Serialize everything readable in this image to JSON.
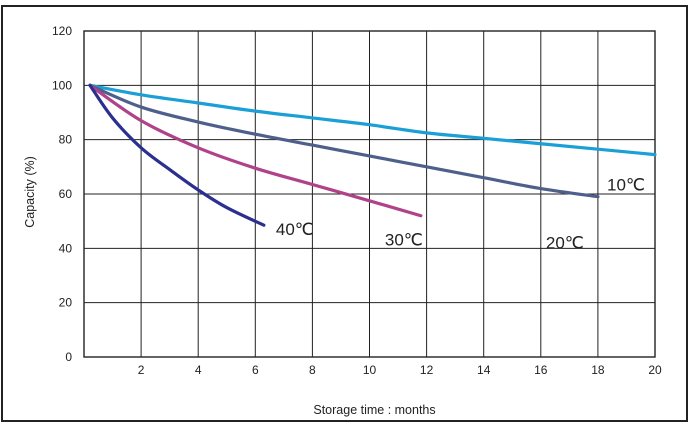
{
  "chart_data": {
    "type": "line",
    "xlabel": "Storage time : months",
    "ylabel": "Capacity (%)",
    "xlim": [
      0,
      20
    ],
    "ylim": [
      0,
      120
    ],
    "x_ticks": [
      "2",
      "4",
      "6",
      "8",
      "10",
      "12",
      "14",
      "16",
      "18",
      "20"
    ],
    "y_ticks": [
      "0",
      "20",
      "40",
      "60",
      "80",
      "100",
      "120"
    ],
    "grid": true,
    "series": [
      {
        "name": "10℃",
        "color": "#1aa0d6",
        "x": [
          0,
          2,
          4,
          6,
          8,
          10,
          12,
          14,
          16,
          18,
          20
        ],
        "y": [
          100,
          96.5,
          93.5,
          90.5,
          88,
          85.5,
          82.5,
          80.5,
          78.5,
          76.5,
          74.5
        ]
      },
      {
        "name": "20℃",
        "color": "#4f5f8c",
        "x": [
          0,
          2,
          4,
          6,
          8,
          10,
          12,
          14,
          16,
          18
        ],
        "y": [
          100,
          92,
          86.5,
          82,
          78,
          74,
          70,
          66,
          62,
          59
        ]
      },
      {
        "name": "30℃",
        "color": "#b0428a",
        "x": [
          0,
          2,
          4,
          6,
          8,
          10,
          11.8
        ],
        "y": [
          100,
          87,
          77,
          69.5,
          63.5,
          57.5,
          52
        ]
      },
      {
        "name": "40℃",
        "color": "#2b2f8f",
        "x": [
          0,
          1,
          2,
          3,
          4,
          5,
          6.3
        ],
        "y": [
          100,
          88,
          77,
          69,
          61.5,
          55,
          48.5
        ]
      }
    ]
  }
}
